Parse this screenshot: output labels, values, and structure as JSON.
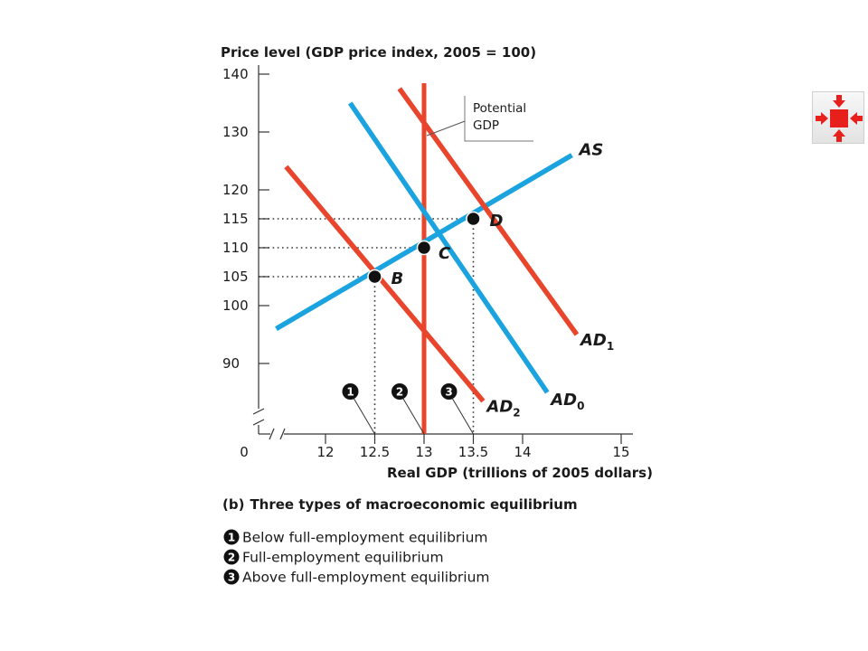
{
  "chart_data": {
    "type": "line",
    "title": "Three types of macroeconomic equilibrium",
    "caption_prefix": "(b)",
    "ylabel": "Price level (GDP price index, 2005 = 100)",
    "xlabel": "Real GDP (trillions of 2005 dollars)",
    "xlim": [
      11.25,
      15.2
    ],
    "ylim": [
      81.5,
      140
    ],
    "origin_label": "0",
    "x_ticks": [
      12,
      12.5,
      13,
      13.5,
      14,
      15
    ],
    "x_tick_labels": [
      "12",
      "12.5",
      "13",
      "13.5",
      "14",
      "15"
    ],
    "y_ticks": [
      90,
      100,
      105,
      110,
      115,
      120,
      130,
      140
    ],
    "y_tick_labels": [
      "90",
      "100",
      "105",
      "110",
      "115",
      "120",
      "130",
      "140"
    ],
    "potential_gdp": {
      "x": 13,
      "label_lines": [
        "Potential",
        "GDP"
      ],
      "color": "#e8452c"
    },
    "series": [
      {
        "name": "AS",
        "sub": "",
        "color": "#1aa3de",
        "x": [
          11.5,
          14.5
        ],
        "y": [
          96,
          126
        ]
      },
      {
        "name": "AD",
        "sub": "0",
        "color": "#1aa3de",
        "x": [
          12.25,
          14.25
        ],
        "y": [
          135,
          85
        ]
      },
      {
        "name": "AD",
        "sub": "1",
        "color": "#e8452c",
        "x": [
          12.75,
          14.55
        ],
        "y": [
          137.5,
          95
        ]
      },
      {
        "name": "AD",
        "sub": "2",
        "color": "#e8452c",
        "x": [
          11.6,
          13.6
        ],
        "y": [
          124,
          83.5
        ]
      }
    ],
    "points": [
      {
        "label": "B",
        "x": 12.5,
        "y": 105
      },
      {
        "label": "C",
        "x": 13,
        "y": 110
      },
      {
        "label": "D",
        "x": 13.5,
        "y": 115
      }
    ],
    "markers": [
      {
        "num": "1",
        "x": 12.5
      },
      {
        "num": "2",
        "x": 13
      },
      {
        "num": "3",
        "x": 13.5
      }
    ],
    "legend": [
      {
        "num": "1",
        "text": "Below full-employment equilibrium"
      },
      {
        "num": "2",
        "text": "Full-employment equilibrium"
      },
      {
        "num": "3",
        "text": "Above full-employment equilibrium"
      }
    ]
  },
  "nav": {
    "icon": "collapse-arrows-icon",
    "color": "#e8201c"
  }
}
